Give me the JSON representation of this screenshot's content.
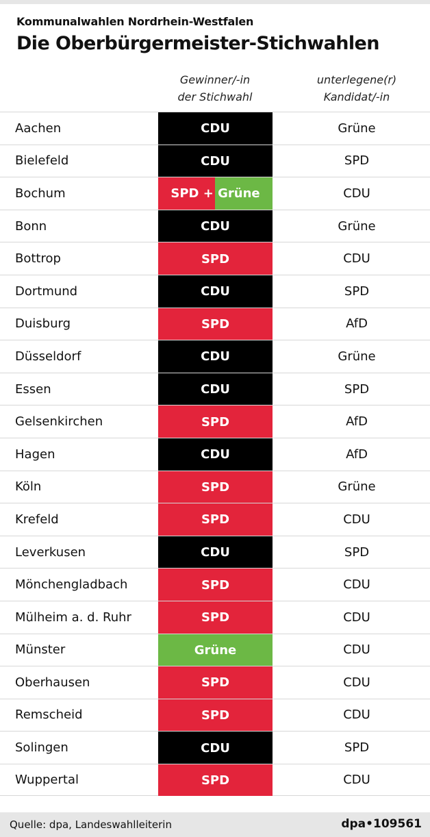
{
  "header": {
    "supertitle": "Kommunalwahlen Nordrhein-Westfalen",
    "title": "Die Oberbürgermeister-Stichwahlen"
  },
  "columns": {
    "winner_line1": "Gewinner/-in",
    "winner_line2": "der Stichwahl",
    "loser_line1": "unterlegene(r)",
    "loser_line2": "Kandidat/-in"
  },
  "colors": {
    "CDU": "#000000",
    "SPD": "#e3243b",
    "Grüne": "#6cb845"
  },
  "chart_data": {
    "type": "table",
    "title": "Die Oberbürgermeister-Stichwahlen",
    "subtitle": "Kommunalwahlen Nordrhein-Westfalen",
    "columns": [
      "",
      "Gewinner/-in der Stichwahl",
      "unterlegene(r) Kandidat/-in"
    ],
    "rows": [
      {
        "city": "Aachen",
        "winner": "CDU",
        "loser": "Grüne"
      },
      {
        "city": "Bielefeld",
        "winner": "CDU",
        "loser": "SPD"
      },
      {
        "city": "Bochum",
        "winner": "SPD + Grüne",
        "loser": "CDU"
      },
      {
        "city": "Bonn",
        "winner": "CDU",
        "loser": "Grüne"
      },
      {
        "city": "Bottrop",
        "winner": "SPD",
        "loser": "CDU"
      },
      {
        "city": "Dortmund",
        "winner": "CDU",
        "loser": "SPD"
      },
      {
        "city": "Duisburg",
        "winner": "SPD",
        "loser": "AfD"
      },
      {
        "city": "Düsseldorf",
        "winner": "CDU",
        "loser": "Grüne"
      },
      {
        "city": "Essen",
        "winner": "CDU",
        "loser": "SPD"
      },
      {
        "city": "Gelsenkirchen",
        "winner": "SPD",
        "loser": "AfD"
      },
      {
        "city": "Hagen",
        "winner": "CDU",
        "loser": "AfD"
      },
      {
        "city": "Köln",
        "winner": "SPD",
        "loser": "Grüne"
      },
      {
        "city": "Krefeld",
        "winner": "SPD",
        "loser": "CDU"
      },
      {
        "city": "Leverkusen",
        "winner": "CDU",
        "loser": "SPD"
      },
      {
        "city": "Mönchengladbach",
        "winner": "SPD",
        "loser": "CDU"
      },
      {
        "city": "Mülheim a. d. Ruhr",
        "winner": "SPD",
        "loser": "CDU"
      },
      {
        "city": "Münster",
        "winner": "Grüne",
        "loser": "CDU"
      },
      {
        "city": "Oberhausen",
        "winner": "SPD",
        "loser": "CDU"
      },
      {
        "city": "Remscheid",
        "winner": "SPD",
        "loser": "CDU"
      },
      {
        "city": "Solingen",
        "winner": "CDU",
        "loser": "SPD"
      },
      {
        "city": "Wuppertal",
        "winner": "SPD",
        "loser": "CDU"
      }
    ]
  },
  "footer": {
    "source": "Quelle: dpa, Landeswahlleiterin",
    "credit": "dpa•109561"
  }
}
